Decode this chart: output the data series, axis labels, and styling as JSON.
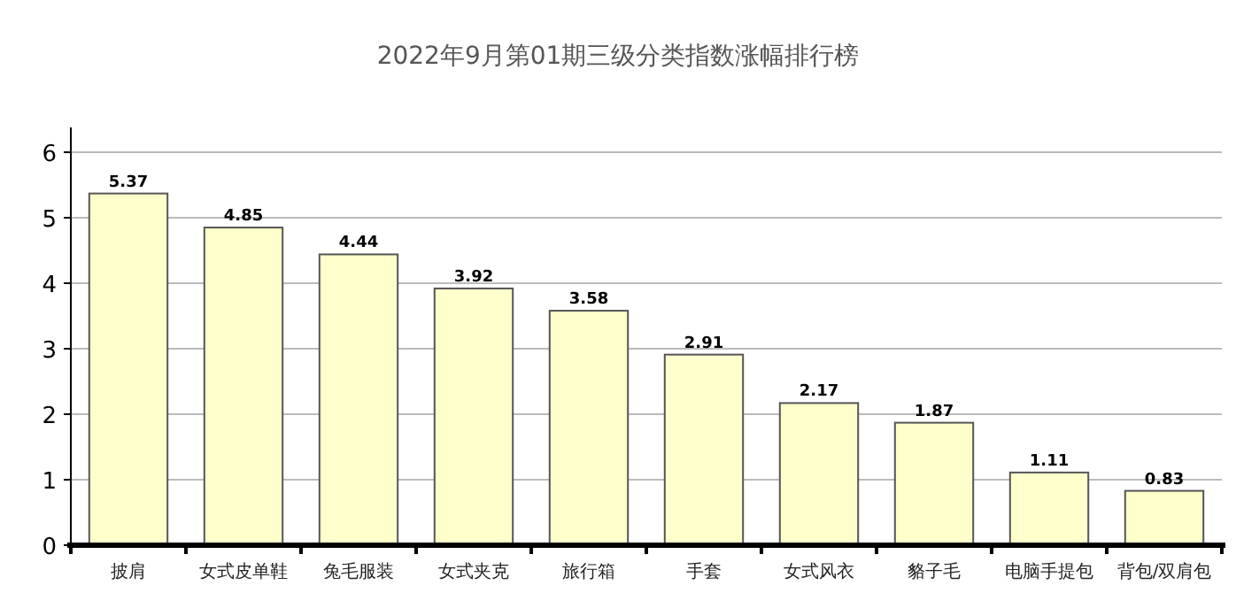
{
  "chart_data": {
    "type": "bar",
    "title": "2022年9月第01期三级分类指数涨幅排行榜",
    "categories": [
      "披肩",
      "女式皮单鞋",
      "兔毛服装",
      "女式夹克",
      "旅行箱",
      "手套",
      "女式风衣",
      "貉子毛",
      "电脑手提包",
      "背包/双肩包"
    ],
    "values": [
      5.37,
      4.85,
      4.44,
      3.92,
      3.58,
      2.91,
      2.17,
      1.87,
      1.11,
      0.83
    ],
    "color": "#ffffcc",
    "ylim": [
      0,
      6
    ],
    "yticks": [
      0,
      1,
      2,
      3,
      4,
      5,
      6
    ],
    "grid": "y",
    "data_labels": true
  }
}
